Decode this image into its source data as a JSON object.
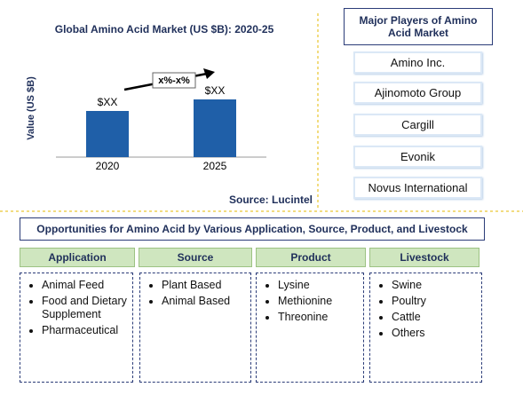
{
  "chart": {
    "title": "Global Amino Acid  Market (US $B): 2020-25",
    "y_axis_label": "Value (US $B)",
    "bars": [
      {
        "category": "2020",
        "label": "$XX"
      },
      {
        "category": "2025",
        "label": "$XX"
      }
    ],
    "growth_label": "x%-x%",
    "source": "Source: Lucintel"
  },
  "players": {
    "title": "Major Players of Amino Acid Market",
    "items": [
      "Amino Inc.",
      "Ajinomoto Group",
      "Cargill",
      "Evonik",
      "Novus International"
    ]
  },
  "opportunities": {
    "title": "Opportunities for Amino Acid  by Various Application, Source, Product, and Livestock",
    "columns": [
      {
        "header": "Application",
        "items": [
          "Animal Feed",
          "Food and Dietary Supplement",
          "Pharmaceutical"
        ]
      },
      {
        "header": "Source",
        "items": [
          "Plant Based",
          "Animal Based"
        ]
      },
      {
        "header": "Product",
        "items": [
          "Lysine",
          "Methionine",
          "Threonine"
        ]
      },
      {
        "header": "Livestock",
        "items": [
          "Swine",
          "Poultry",
          "Cattle",
          "Others"
        ]
      }
    ]
  }
}
